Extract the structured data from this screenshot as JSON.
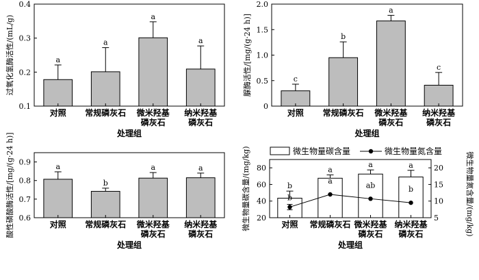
{
  "chart_data": [
    {
      "type": "bar",
      "categories": [
        [
          "对照"
        ],
        [
          "常规磷灰石"
        ],
        [
          "微米羟基",
          "磷灰石"
        ],
        [
          "纳米羟基",
          "磷灰石"
        ]
      ],
      "values": [
        0.178,
        0.201,
        0.301,
        0.209
      ],
      "errors": [
        0.043,
        0.071,
        0.047,
        0.068
      ],
      "significance": [
        "a",
        "a",
        "a",
        "a"
      ],
      "ylabel": "过氧化氢酶活性/(mL/g)",
      "xlabel": "处理组",
      "ylim": [
        0.1,
        0.4
      ],
      "yticks": [
        0.1,
        0.2,
        0.3,
        0.4
      ],
      "yticklabels": [
        "0.1",
        "0.2",
        "0.3",
        "0.4"
      ],
      "grid": false
    },
    {
      "type": "bar",
      "categories": [
        [
          "对照"
        ],
        [
          "常规磷灰石"
        ],
        [
          "微米羟基",
          "磷灰石"
        ],
        [
          "纳米羟基",
          "磷灰石"
        ]
      ],
      "values": [
        0.3,
        0.95,
        1.67,
        0.41
      ],
      "errors": [
        0.13,
        0.31,
        0.11,
        0.25
      ],
      "significance": [
        "c",
        "b",
        "a",
        "c"
      ],
      "ylabel": "脲酶活性/[mg/(g·24 h)]",
      "xlabel": "处理组",
      "ylim": [
        0,
        2.0
      ],
      "yticks": [
        0,
        0.5,
        1.0,
        1.5,
        2.0
      ],
      "yticklabels": [
        "0",
        "0.5",
        "1.0",
        "1.5",
        "2.0"
      ],
      "grid": false
    },
    {
      "type": "bar",
      "categories": [
        [
          "对照"
        ],
        [
          "常规磷灰石"
        ],
        [
          "微米羟基",
          "磷灰石"
        ],
        [
          "纳米羟基",
          "磷灰石"
        ]
      ],
      "values": [
        0.807,
        0.742,
        0.813,
        0.815
      ],
      "errors": [
        0.04,
        0.017,
        0.03,
        0.025
      ],
      "significance": [
        "a",
        "b",
        "a",
        "a"
      ],
      "ylabel": "酸性磷酸酶活性/[mg/(g·24 h)]",
      "xlabel": "处理组",
      "ylim": [
        0.6,
        0.95
      ],
      "yticks": [
        0.6,
        0.7,
        0.8,
        0.9
      ],
      "yticklabels": [
        "0.6",
        "0.7",
        "0.8",
        "0.9"
      ],
      "grid": false
    },
    {
      "type": "bar+line",
      "categories": [
        [
          "对照"
        ],
        [
          "常规磷灰石"
        ],
        [
          "微米羟基",
          "磷灰石"
        ],
        [
          "纳米羟基",
          "磷灰石"
        ]
      ],
      "series": [
        {
          "name": "微生物量碳含量",
          "kind": "bar",
          "axis": "left",
          "values": [
            43.5,
            67.5,
            72.5,
            69
          ],
          "errors": [
            8.5,
            4.0,
            5.0,
            8.0
          ],
          "significance": [
            "b",
            "a",
            "a",
            "a"
          ]
        },
        {
          "name": "微生物量氮含量",
          "kind": "line",
          "axis": "right",
          "values": [
            8.2,
            12.0,
            10.7,
            9.5
          ],
          "errors": [
            0.8,
            0,
            0,
            0
          ],
          "significance": [
            "b",
            "a",
            "ab",
            "b"
          ]
        }
      ],
      "ylabel": "微生物量碳含量/(mg/kg)",
      "y2label": "微生物量氮含量/(mg/kg)",
      "xlabel": "处理组",
      "ylim": [
        20,
        90
      ],
      "y2lim": [
        5,
        22.5
      ],
      "yticks": [
        20,
        40,
        60,
        80
      ],
      "yticklabels": [
        "20",
        "40",
        "60",
        "80"
      ],
      "y2ticks": [
        5,
        10,
        15,
        20
      ],
      "y2ticklabels": [
        "5",
        "10",
        "15",
        "20"
      ],
      "legend_position": "top",
      "grid": false
    }
  ],
  "colors": {
    "bar_fill": "#bdbdbd",
    "bar_fill_open": "#ffffff",
    "line": "#000000",
    "axis": "#000000"
  }
}
